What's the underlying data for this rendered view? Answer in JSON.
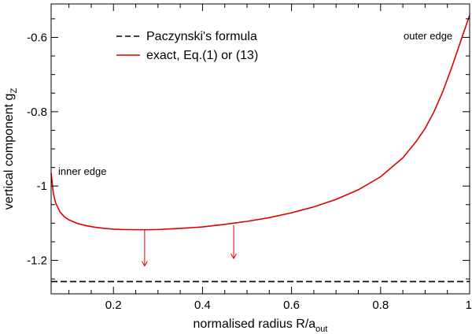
{
  "chart_data": {
    "type": "line",
    "xlabel": "normalised radius R/a",
    "xlabel_sub": "out",
    "ylabel": "vertical component g",
    "ylabel_sub": "Z",
    "xlim": [
      0.06,
      1.0
    ],
    "ylim": [
      -1.29,
      -0.51
    ],
    "x_ticks": [
      0.2,
      0.4,
      0.6,
      0.8,
      1.0
    ],
    "x_tick_labels": [
      "0.2",
      "0.4",
      "0.6",
      "0.8",
      "1"
    ],
    "y_ticks": [
      -1.2,
      -1.0,
      -0.8,
      -0.6
    ],
    "y_tick_labels": [
      "-1.2",
      "-1",
      "-0.8",
      "-0.6"
    ],
    "legend_position": "top-left",
    "series": [
      {
        "name": "Paczynski's formula",
        "style": "dashed",
        "color": "#000000",
        "x": [
          0.06,
          1.0
        ],
        "y": [
          -1.257,
          -1.257
        ]
      },
      {
        "name": "exact, Eq.(1) or (13)",
        "style": "solid",
        "color": "#dd0000",
        "x": [
          0.06,
          0.065,
          0.07,
          0.08,
          0.09,
          0.1,
          0.12,
          0.14,
          0.16,
          0.18,
          0.2,
          0.22,
          0.25,
          0.28,
          0.3,
          0.35,
          0.4,
          0.45,
          0.5,
          0.55,
          0.6,
          0.65,
          0.7,
          0.75,
          0.8,
          0.85,
          0.88,
          0.9,
          0.92,
          0.94,
          0.96,
          0.98,
          0.99,
          1.0
        ],
        "y": [
          -0.965,
          -1.02,
          -1.045,
          -1.07,
          -1.083,
          -1.091,
          -1.101,
          -1.107,
          -1.111,
          -1.114,
          -1.116,
          -1.117,
          -1.1175,
          -1.1175,
          -1.117,
          -1.114,
          -1.11,
          -1.103,
          -1.095,
          -1.085,
          -1.072,
          -1.056,
          -1.036,
          -1.01,
          -0.975,
          -0.924,
          -0.88,
          -0.845,
          -0.8,
          -0.745,
          -0.68,
          -0.61,
          -0.575,
          -0.54
        ]
      }
    ],
    "annotations": [
      {
        "text": "inner edge",
        "x": 0.065,
        "y": -0.965
      },
      {
        "text": "outer edge",
        "x": 0.855,
        "y": -0.59
      }
    ],
    "arrows": [
      {
        "x": 0.27,
        "y_from": -1.118,
        "y_to": -1.215
      },
      {
        "x": 0.47,
        "y_from": -1.105,
        "y_to": -1.195
      }
    ]
  }
}
